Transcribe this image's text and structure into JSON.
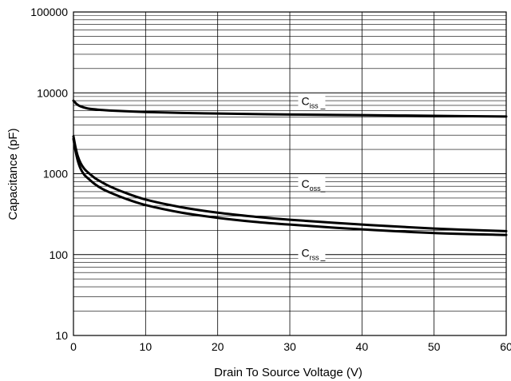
{
  "chart_data": {
    "type": "line",
    "title": "",
    "xlabel": "Drain To Source Voltage (V)",
    "ylabel": "Capacitance (pF)",
    "xlim": [
      0,
      60
    ],
    "ylim": [
      10,
      100000
    ],
    "yscale": "log",
    "grid": true,
    "x_ticks": [
      "0",
      "10",
      "20",
      "30",
      "40",
      "50",
      "60"
    ],
    "y_ticks": [
      "10",
      "100",
      "1000",
      "10000",
      "100000"
    ],
    "series": [
      {
        "name": "Ciss",
        "x": [
          0,
          0.5,
          1,
          2,
          3,
          5,
          10,
          15,
          20,
          30,
          40,
          50,
          60
        ],
        "y": [
          8000,
          7200,
          6800,
          6400,
          6250,
          6050,
          5800,
          5650,
          5550,
          5400,
          5300,
          5200,
          5100
        ]
      },
      {
        "name": "Coss",
        "x": [
          0,
          0.3,
          0.6,
          1,
          1.5,
          2,
          3,
          4,
          5,
          7,
          10,
          15,
          20,
          25,
          30,
          40,
          50,
          60
        ],
        "y": [
          2900,
          2100,
          1650,
          1350,
          1150,
          1040,
          880,
          780,
          700,
          590,
          480,
          385,
          330,
          295,
          270,
          235,
          210,
          195
        ]
      },
      {
        "name": "Crss",
        "x": [
          0,
          0.3,
          0.6,
          1,
          1.5,
          2,
          3,
          4,
          5,
          7,
          10,
          15,
          20,
          25,
          30,
          40,
          50,
          60
        ],
        "y": [
          2700,
          1900,
          1450,
          1150,
          970,
          880,
          740,
          650,
          590,
          500,
          410,
          330,
          285,
          255,
          235,
          205,
          185,
          175
        ]
      }
    ],
    "annotations": [
      {
        "main": "C",
        "sub": "iss",
        "x": 31.6,
        "y": 7400
      },
      {
        "main": "C",
        "sub": "oss",
        "x": 31.6,
        "y": 700
      },
      {
        "main": "C",
        "sub": "rss",
        "x": 31.6,
        "y": 98
      }
    ]
  },
  "colors": {
    "line": "#000000",
    "grid": "#000000",
    "background": "#ffffff"
  }
}
